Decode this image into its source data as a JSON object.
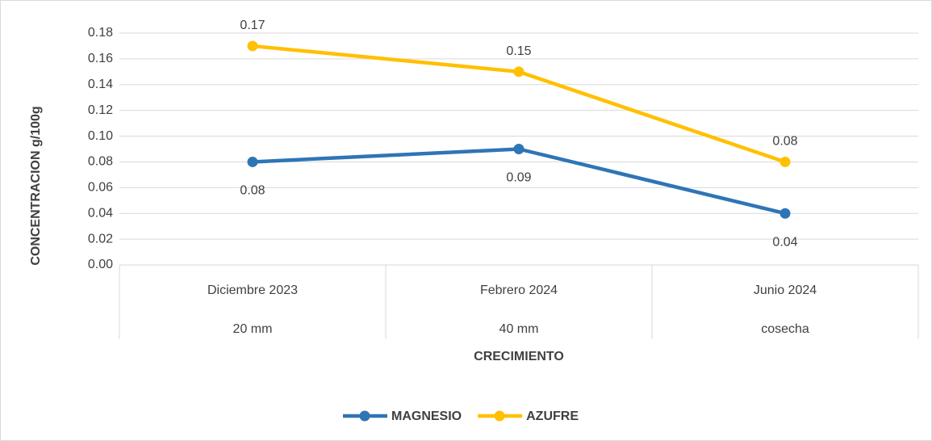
{
  "chart_data": {
    "type": "line",
    "y_label": "CONCENTRACION g/100g",
    "x_label": "CRECIMIENTO",
    "categories": [
      [
        "Diciembre 2023",
        "20 mm"
      ],
      [
        "Febrero 2024",
        "40 mm"
      ],
      [
        "Junio 2024",
        "cosecha"
      ]
    ],
    "series": [
      {
        "name": "MAGNESIO",
        "color": "#2e75b6",
        "values": [
          0.08,
          0.09,
          0.04
        ],
        "label_position": "below"
      },
      {
        "name": "AZUFRE",
        "color": "#ffc000",
        "values": [
          0.17,
          0.15,
          0.08
        ],
        "label_position": "above"
      }
    ],
    "ylim": [
      0,
      0.18
    ],
    "yticks": [
      {
        "value": 0,
        "label": "0.00"
      },
      0.02,
      0.04,
      0.06,
      0.08,
      {
        "value": 0.1,
        "label": "0.10"
      },
      0.12,
      0.14,
      0.16,
      0.18
    ],
    "grid": true,
    "legend": "bottom"
  }
}
